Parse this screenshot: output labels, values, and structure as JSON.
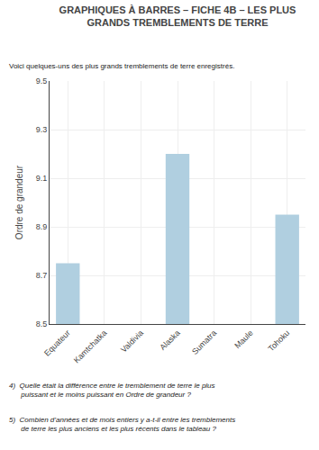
{
  "chart_data": {
    "type": "bar",
    "title": "GRAPHIQUES À BARRES – FICHE 4B – LES PLUS\nGRANDS TREMBLEMENTS DE TERRE",
    "subtitle": "Voici quelques-uns des plus grands tremblements de terre enregistrés.",
    "categories": [
      "Equateur",
      "Kamtchatka",
      "Valdivia",
      "Alaska",
      "Sumatra",
      "Maule",
      "Tohoku"
    ],
    "values": [
      8.75,
      null,
      null,
      9.2,
      null,
      null,
      8.95
    ],
    "color": "#b0cfe0",
    "y_label": "Ordre de grandeur",
    "ylim": [
      8.5,
      9.5
    ],
    "yticks": [
      8.5,
      8.7,
      8.9,
      9.1,
      9.3,
      9.5
    ],
    "grid": true,
    "annotations": [
      "4)  Quelle était la différence entre le tremblement de terre le plus\n      puissant et le moins puissant en Ordre de grandeur ?",
      "5)  Combien d’années et de mois entiers y a-t-il entre les tremblements\n      de terre les plus anciens et les plus récents dans le tableau ?"
    ]
  }
}
